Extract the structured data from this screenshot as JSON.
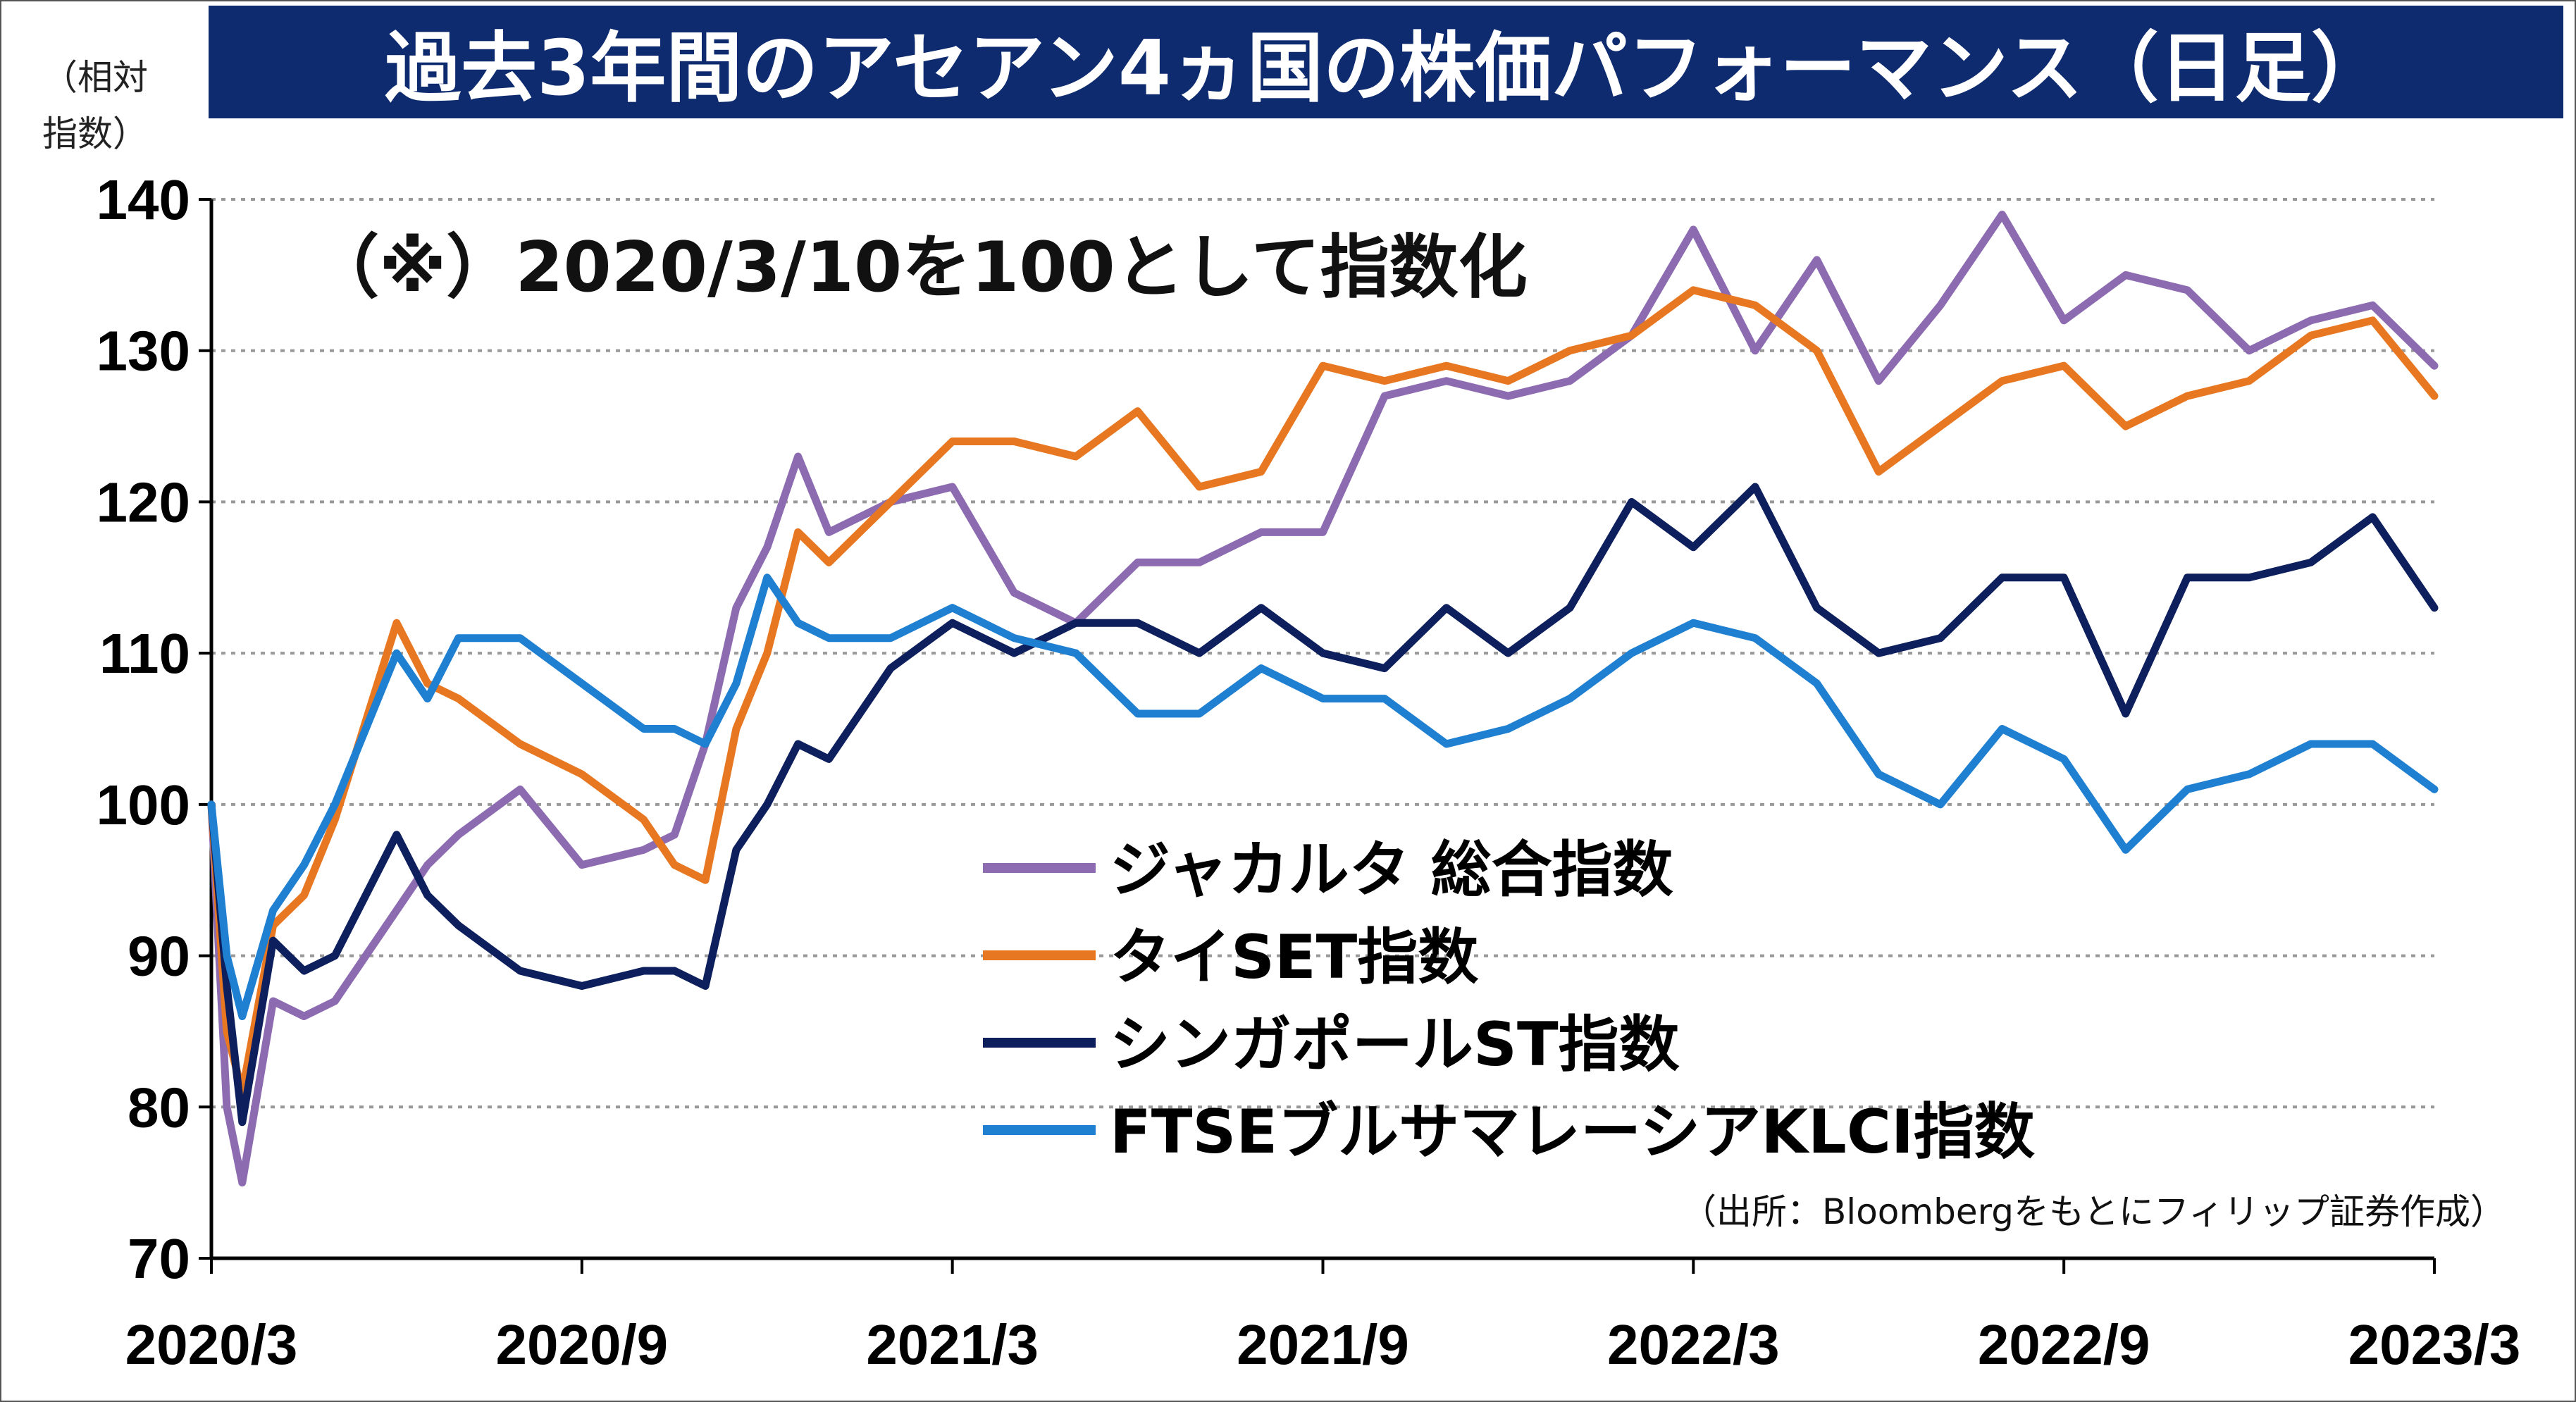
{
  "title": "過去3年間のアセアン4ヵ国の株価パフォーマンス（日足）",
  "ylabel": "（相対\n指数）",
  "note": "（※）2020/3/10を100として指数化",
  "source": "（出所：Bloombergをもとにフィリップ証券作成）",
  "chart_data": {
    "type": "line",
    "title": "過去3年間のアセアン4ヵ国の株価パフォーマンス（日足）",
    "ylabel": "（相対指数）",
    "ylim": [
      70,
      140
    ],
    "yticks": [
      70,
      80,
      90,
      100,
      110,
      120,
      130,
      140
    ],
    "xlim": [
      0,
      36
    ],
    "xtick_labels": [
      "2020/3",
      "2020/9",
      "2021/3",
      "2021/9",
      "2022/3",
      "2022/9",
      "2023/3"
    ],
    "xtick_positions": [
      0,
      6,
      12,
      18,
      24,
      30,
      36
    ],
    "grid": true,
    "legend_position": "center",
    "x": [
      0,
      0.25,
      0.5,
      1,
      1.5,
      2,
      3,
      3.5,
      4,
      5,
      6,
      7,
      7.5,
      8,
      8.5,
      9,
      9.5,
      10,
      11,
      12,
      13,
      14,
      15,
      16,
      17,
      18,
      19,
      20,
      21,
      22,
      23,
      24,
      25,
      26,
      27,
      28,
      29,
      30,
      31,
      32,
      33,
      34,
      35,
      36
    ],
    "series": [
      {
        "name": "ジャカルタ 総合指数",
        "color": "#8c6bb1",
        "values": [
          100,
          80,
          75,
          87,
          86,
          87,
          93,
          96,
          98,
          101,
          96,
          97,
          98,
          104,
          113,
          117,
          123,
          118,
          120,
          121,
          114,
          112,
          116,
          116,
          118,
          118,
          127,
          128,
          127,
          128,
          131,
          138,
          130,
          136,
          128,
          133,
          139,
          132,
          135,
          134,
          130,
          132,
          133,
          129
        ]
      },
      {
        "name": "タイSET指数",
        "color": "#e87722",
        "values": [
          100,
          85,
          81,
          92,
          94,
          99,
          112,
          108,
          107,
          104,
          102,
          99,
          96,
          95,
          105,
          110,
          118,
          116,
          120,
          124,
          124,
          123,
          126,
          121,
          122,
          129,
          128,
          129,
          128,
          130,
          131,
          134,
          133,
          130,
          122,
          125,
          128,
          129,
          125,
          127,
          128,
          131,
          132,
          127
        ]
      },
      {
        "name": "シンガポールST指数",
        "color": "#0d1f5c",
        "values": [
          100,
          88,
          79,
          91,
          89,
          90,
          98,
          94,
          92,
          89,
          88,
          89,
          89,
          88,
          97,
          100,
          104,
          103,
          109,
          112,
          110,
          112,
          112,
          110,
          113,
          110,
          109,
          113,
          110,
          113,
          120,
          117,
          121,
          113,
          110,
          111,
          115,
          115,
          106,
          115,
          115,
          116,
          119,
          113
        ]
      },
      {
        "name": "FTSEブルサマレーシアKLCI指数",
        "color": "#1f7fd1",
        "values": [
          100,
          90,
          86,
          93,
          96,
          100,
          110,
          107,
          111,
          111,
          108,
          105,
          105,
          104,
          108,
          115,
          112,
          111,
          111,
          113,
          111,
          110,
          106,
          106,
          109,
          107,
          107,
          104,
          105,
          107,
          110,
          112,
          111,
          108,
          102,
          100,
          105,
          103,
          97,
          101,
          102,
          104,
          104,
          101
        ]
      }
    ]
  }
}
